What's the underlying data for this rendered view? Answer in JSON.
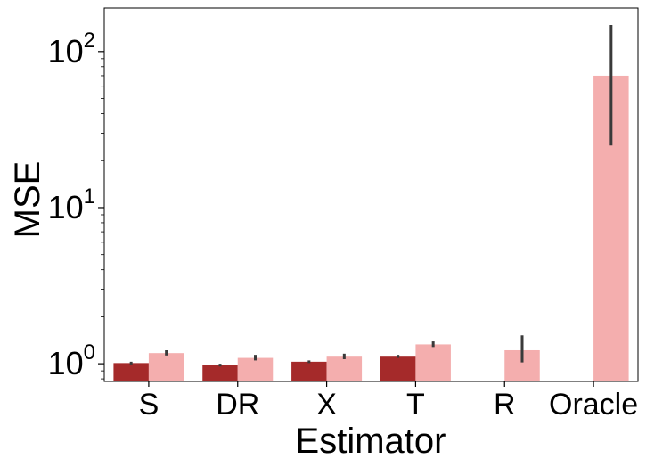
{
  "chart_data": {
    "type": "bar",
    "title": "",
    "xlabel": "Estimator",
    "ylabel": "MSE",
    "yscale": "log",
    "ylim": [
      0.77,
      190
    ],
    "grid": false,
    "legend": "none",
    "categories": [
      "S",
      "DR",
      "X",
      "T",
      "R",
      "Oracle"
    ],
    "yticks": [
      {
        "value": 1,
        "base": "10",
        "exp": "0"
      },
      {
        "value": 10,
        "base": "10",
        "exp": "1"
      },
      {
        "value": 100,
        "base": "10",
        "exp": "2"
      }
    ],
    "series": [
      {
        "color": "#a52a2a",
        "values": [
          1.01,
          0.98,
          1.03,
          1.11,
          null,
          null
        ],
        "err_low": [
          0.99,
          0.96,
          1.01,
          1.09,
          null,
          null
        ],
        "err_high": [
          1.03,
          1.0,
          1.05,
          1.14,
          null,
          null
        ]
      },
      {
        "color": "#f4aeae",
        "values": [
          1.17,
          1.09,
          1.11,
          1.33,
          1.22,
          70
        ],
        "err_low": [
          1.13,
          1.05,
          1.07,
          1.28,
          1.02,
          25
        ],
        "err_high": [
          1.22,
          1.14,
          1.16,
          1.39,
          1.52,
          148
        ]
      }
    ],
    "errorbar_color": "#3a3a3a"
  }
}
